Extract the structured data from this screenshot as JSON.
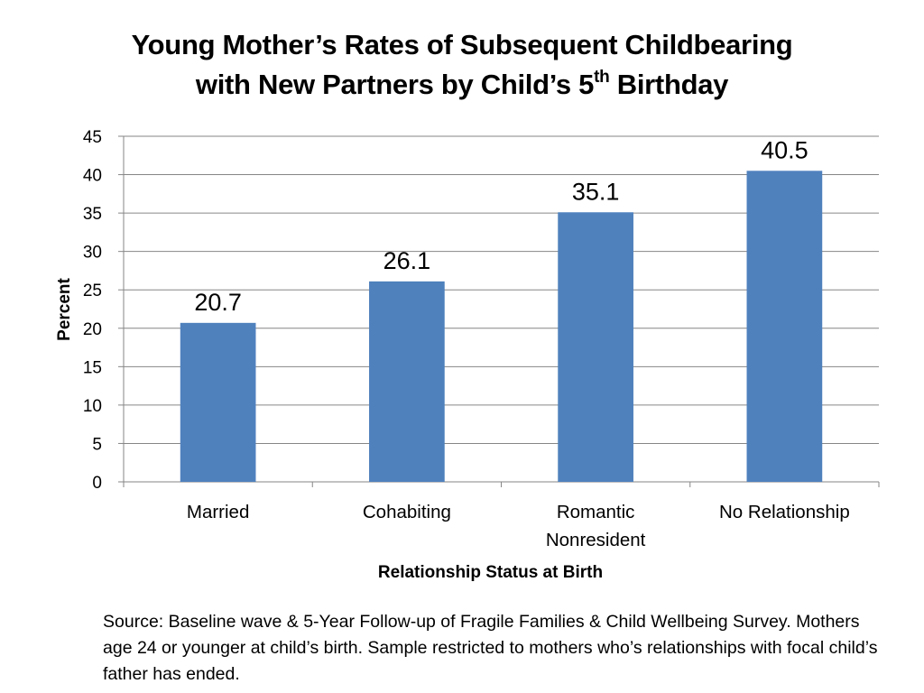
{
  "title": {
    "line1": "Young Mother’s Rates of Subsequent Childbearing",
    "line2_main": "with New Partners by Child’s 5",
    "line2_sup": "th",
    "line2_end": " Birthday"
  },
  "chart_data": {
    "type": "bar",
    "categories": [
      [
        "Married"
      ],
      [
        "Cohabiting"
      ],
      [
        "Romantic",
        "Nonresident"
      ],
      [
        "No Relationship"
      ]
    ],
    "values": [
      20.7,
      26.1,
      35.1,
      40.5
    ],
    "data_labels": [
      "20.7",
      "26.1",
      "35.1",
      "40.5"
    ],
    "xlabel": "Relationship Status at Birth",
    "ylabel": "Percent",
    "ylim": [
      0,
      45
    ],
    "yticks": [
      0,
      5,
      10,
      15,
      20,
      25,
      30,
      35,
      40,
      45
    ],
    "grid": true,
    "legend": "none",
    "bar_color": "#4F81BD",
    "grid_color": "#868686"
  },
  "source_note": "Source: Baseline wave & 5-Year Follow-up of Fragile Families & Child Wellbeing Survey.  Mothers age 24 or younger at child’s birth. Sample restricted to mothers who’s relationships with focal child’s father has ended."
}
